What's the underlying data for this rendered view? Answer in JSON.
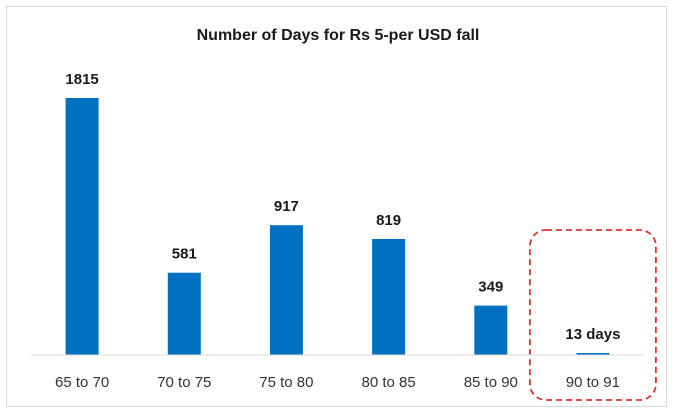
{
  "chart_data": {
    "type": "bar",
    "title": "Number of Days for Rs 5-per USD fall",
    "xlabel": "",
    "ylabel": "",
    "categories": [
      "65 to 70",
      "70 to 75",
      "75 to 80",
      "80 to 85",
      "85 to 90",
      "90 to 91"
    ],
    "values": [
      1815,
      581,
      917,
      819,
      349,
      13
    ],
    "data_labels": [
      "1815",
      "581",
      "917",
      "819",
      "349",
      "13 days"
    ],
    "ylim": [
      0,
      1815
    ],
    "grid": false,
    "legend": "none",
    "bar_color": "#0070c0",
    "highlight": {
      "category": "90 to 91",
      "style": "dashed-rounded-box",
      "color": "#e03030"
    }
  }
}
